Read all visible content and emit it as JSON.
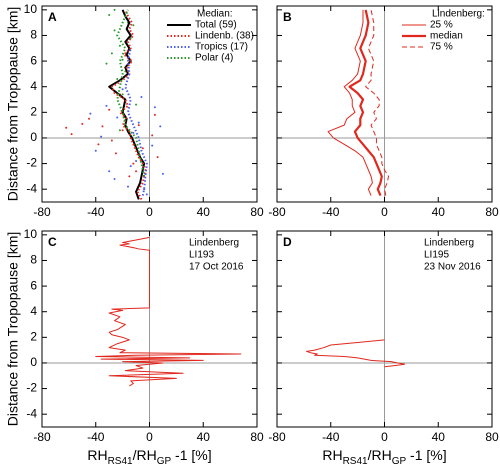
{
  "chart_data": [
    {
      "type": "profile",
      "panel_label": "A",
      "ylabel": "Distance from Tropopause [km]",
      "xlim": [
        -80,
        80
      ],
      "xticks": [
        -80,
        -40,
        0,
        40,
        80
      ],
      "ylim": [
        -5,
        10.3
      ],
      "yticks": [
        -4,
        -2,
        0,
        2,
        4,
        6,
        8,
        10
      ],
      "zero_lines": true,
      "legend": "upper right",
      "legend_title": "Median:",
      "points": [
        {
          "color": "#e0281e",
          "x": [
            -62,
            -58,
            -45,
            -38,
            -30,
            -25,
            -20,
            -12,
            -8,
            -5,
            2,
            6,
            -35,
            -18,
            -28,
            -50,
            -15,
            4,
            -22,
            -10
          ],
          "y": [
            0.8,
            0.3,
            1.5,
            -0.5,
            2.2,
            -1.2,
            0.6,
            -2.0,
            1.0,
            -0.8,
            0.2,
            -1.5,
            0.9,
            2.8,
            -0.2,
            1.1,
            -3.0,
            1.8,
            3.4,
            -2.6
          ]
        },
        {
          "color": "#4a5ef0",
          "x": [
            -40,
            -32,
            -26,
            -20,
            -14,
            -8,
            -4,
            2,
            8,
            -36,
            -24,
            -10,
            4,
            -16,
            -30,
            -6,
            10,
            -2,
            -44,
            -12
          ],
          "y": [
            -1.0,
            2.5,
            -3.2,
            3.8,
            -2.2,
            1.2,
            -4.0,
            -0.6,
            0.9,
            0.1,
            1.6,
            -1.8,
            2.4,
            -3.8,
            -2.6,
            3.2,
            -2.8,
            -4.4,
            1.9,
            0.4
          ]
        },
        {
          "color": "#2a9a2a",
          "x": [
            -30,
            -26,
            -22,
            -20,
            -18,
            -16,
            -14,
            -24,
            -28,
            -12,
            -20,
            -32,
            -10,
            -18,
            -22,
            -26
          ],
          "y": [
            9.6,
            8.4,
            7.2,
            6.1,
            5.2,
            9.0,
            7.8,
            4.6,
            6.6,
            8.8,
            3.4,
            5.8,
            2.6,
            1.4,
            0.6,
            10.0
          ]
        }
      ],
      "series": [
        {
          "name": "Total (59)",
          "color": "#000000",
          "dash": "solid",
          "width": 2,
          "y": [
            -4.8,
            -4.2,
            -3.5,
            -3,
            -2.5,
            -2,
            -1.5,
            -1,
            -0.5,
            0,
            0.5,
            1,
            1.5,
            2,
            2.5,
            3,
            3.5,
            4,
            4.5,
            5,
            5.5,
            6,
            6.5,
            7,
            7.5,
            8,
            8.5,
            9,
            9.5,
            10
          ],
          "x": [
            -8,
            -10,
            -7,
            -6,
            -5,
            -4,
            -7,
            -9,
            -11,
            -13,
            -16,
            -18,
            -17,
            -20,
            -19,
            -18,
            -24,
            -30,
            -22,
            -16,
            -18,
            -14,
            -17,
            -15,
            -18,
            -14,
            -17,
            -15,
            -18,
            -20
          ]
        },
        {
          "name": "Lindenb. (38)",
          "color": "#e0281e",
          "dash": "dotted",
          "width": 2,
          "y": [
            -4.8,
            -4.2,
            -3.5,
            -3,
            -2.5,
            -2,
            -1.5,
            -1,
            -0.5,
            0,
            0.5,
            1,
            1.5,
            2,
            2.5,
            3,
            3.5,
            4,
            4.5,
            5,
            5.5,
            6,
            6.5,
            7,
            7.5,
            8,
            8.5,
            9,
            9.5,
            10
          ],
          "x": [
            -6,
            -9,
            -5,
            -4,
            -3,
            -5,
            -8,
            -10,
            -12,
            -14,
            -15,
            -20,
            -17,
            -22,
            -16,
            -18,
            -26,
            -28,
            -20,
            -15,
            -17,
            -13,
            -19,
            -14,
            -16,
            -12,
            -15,
            -13,
            -16,
            -18
          ]
        },
        {
          "name": "Tropics (17)",
          "color": "#4a5ef0",
          "dash": "dotted",
          "width": 2,
          "y": [
            -4.5,
            -4,
            -3,
            -2,
            -1,
            0,
            1,
            2,
            3,
            4,
            5,
            6,
            7
          ],
          "x": [
            -5,
            -4,
            -3,
            -2,
            -6,
            -8,
            -12,
            -16,
            -14,
            -18,
            -15,
            -16,
            -14
          ]
        },
        {
          "name": "Polar (4)",
          "color": "#2a9a2a",
          "dash": "dotted",
          "width": 2,
          "y": [
            -3,
            -2,
            -1,
            0,
            1,
            2,
            3,
            4,
            5,
            6,
            7,
            8,
            9,
            10
          ],
          "x": [
            -4,
            -6,
            -8,
            -10,
            -18,
            -20,
            -24,
            -22,
            -20,
            -22,
            -18,
            -24,
            -20,
            -16
          ]
        }
      ]
    },
    {
      "type": "profile",
      "panel_label": "B",
      "xlim": [
        -80,
        80
      ],
      "xticks": [
        -80,
        -40,
        0,
        40,
        80
      ],
      "ylim": [
        -5,
        10.3
      ],
      "yticks": [
        -4,
        -2,
        0,
        2,
        4,
        6,
        8,
        10
      ],
      "zero_lines": true,
      "legend": "upper right",
      "legend_title": "Lindenberg:",
      "legend_title_color": "#e0281e",
      "series": [
        {
          "name": "25 %",
          "color": "#e0281e",
          "dash": "solid",
          "width": 1,
          "y": [
            -4.5,
            -4,
            -3.5,
            -3,
            -2.5,
            -2,
            -1.5,
            -1,
            -0.5,
            0,
            0.5,
            1,
            1.5,
            2,
            2.5,
            3,
            3.5,
            4,
            4.5,
            5,
            6,
            7,
            8,
            9,
            10
          ],
          "x": [
            -10,
            -12,
            -9,
            -10,
            -12,
            -14,
            -16,
            -22,
            -30,
            -38,
            -42,
            -30,
            -28,
            -22,
            -24,
            -24,
            -26,
            -30,
            -24,
            -20,
            -18,
            -22,
            -18,
            -16,
            -16
          ]
        },
        {
          "name": "median",
          "color": "#e0281e",
          "dash": "solid",
          "width": 2.2,
          "y": [
            -4.5,
            -4,
            -3.5,
            -3,
            -2.5,
            -2,
            -1.5,
            -1,
            -0.5,
            0,
            0.5,
            1,
            1.5,
            2,
            2.5,
            3,
            3.5,
            4,
            4.5,
            5,
            6,
            7,
            8,
            9,
            10
          ],
          "x": [
            -3,
            -5,
            -3,
            -2,
            -4,
            -6,
            -8,
            -12,
            -16,
            -20,
            -22,
            -18,
            -18,
            -16,
            -18,
            -16,
            -20,
            -26,
            -18,
            -16,
            -14,
            -18,
            -14,
            -12,
            -14
          ]
        },
        {
          "name": "75 %",
          "color": "#e0281e",
          "dash": "dashed",
          "width": 1,
          "y": [
            -4.5,
            -4,
            -3.5,
            -3,
            -2.5,
            -2,
            -1.5,
            -1,
            -0.5,
            0,
            0.5,
            1,
            1.5,
            2,
            2.5,
            3,
            3.5,
            4,
            4.5,
            5,
            6,
            7,
            8,
            9,
            10
          ],
          "x": [
            1,
            0,
            2,
            3,
            0,
            -2,
            -2,
            -4,
            -6,
            -6,
            -8,
            -10,
            -6,
            -8,
            -4,
            -4,
            -8,
            -14,
            -10,
            -10,
            -8,
            -12,
            -8,
            -8,
            -10
          ]
        }
      ]
    },
    {
      "type": "profile",
      "panel_label": "C",
      "ylabel": "Distance from Tropopause [km]",
      "xlabel": [
        "RH",
        "RS41",
        "/RH",
        "GP",
        " -1 [%]"
      ],
      "xlim": [
        -80,
        80
      ],
      "xticks": [
        -80,
        -40,
        0,
        40,
        80
      ],
      "ylim": [
        -5,
        10.3
      ],
      "yticks": [
        -4,
        -2,
        0,
        2,
        4,
        6,
        8,
        10
      ],
      "zero_lines": true,
      "annotations": [
        "Lindenberg",
        "LI193",
        "17 Oct 2016"
      ],
      "annotation_color": "#e0281e",
      "series": [
        {
          "color": "#e0281e",
          "dash": "solid",
          "width": 1,
          "y": [
            9.8,
            9.6,
            9.4,
            9.3,
            9.2,
            9.0,
            8.9,
            8.8,
            4.3,
            4.2,
            4.1,
            3.9,
            3.6,
            3.3,
            3.0,
            2.6,
            2.4,
            2.2,
            2.0,
            1.8,
            1.5,
            1.2,
            1.0,
            0.8,
            0.7,
            0.6,
            0.5,
            0.4,
            0.3,
            0.2,
            0.1,
            0.0,
            -0.2,
            -0.4,
            -0.6,
            -0.8,
            -1.0,
            -1.2,
            -1.4,
            -1.6,
            -1.8
          ],
          "x": [
            0,
            -10,
            -20,
            -15,
            -22,
            -12,
            -8,
            0,
            0,
            -28,
            -20,
            -30,
            -22,
            -26,
            -18,
            -24,
            -30,
            -28,
            -20,
            -15,
            -24,
            -30,
            -18,
            -22,
            68,
            -10,
            -40,
            30,
            -36,
            40,
            -20,
            10,
            -10,
            -5,
            -18,
            25,
            -30,
            20,
            -14,
            -12,
            -15
          ]
        }
      ]
    },
    {
      "type": "profile",
      "panel_label": "D",
      "xlabel": [
        "RH",
        "RS41",
        "/RH",
        "GP",
        " -1 [%]"
      ],
      "xlim": [
        -80,
        80
      ],
      "xticks": [
        -80,
        -40,
        0,
        40,
        80
      ],
      "ylim": [
        -5,
        10.3
      ],
      "yticks": [
        -4,
        -2,
        0,
        2,
        4,
        6,
        8,
        10
      ],
      "zero_lines": true,
      "annotations": [
        "Lindenberg",
        "LI195",
        "23 Nov 2016"
      ],
      "annotation_color": "#e0281e",
      "series": [
        {
          "color": "#e0281e",
          "dash": "solid",
          "width": 1,
          "y": [
            1.8,
            1.6,
            1.4,
            1.2,
            1.0,
            0.9,
            0.8,
            0.7,
            0.6,
            0.5,
            0.4,
            0.3,
            0.2,
            0.1,
            0.0,
            -0.1,
            -0.2,
            -0.3
          ],
          "x": [
            0,
            -20,
            -40,
            -45,
            -52,
            -58,
            -55,
            -50,
            -52,
            -30,
            -20,
            -15,
            -10,
            5,
            10,
            15,
            8,
            0
          ]
        }
      ]
    }
  ]
}
